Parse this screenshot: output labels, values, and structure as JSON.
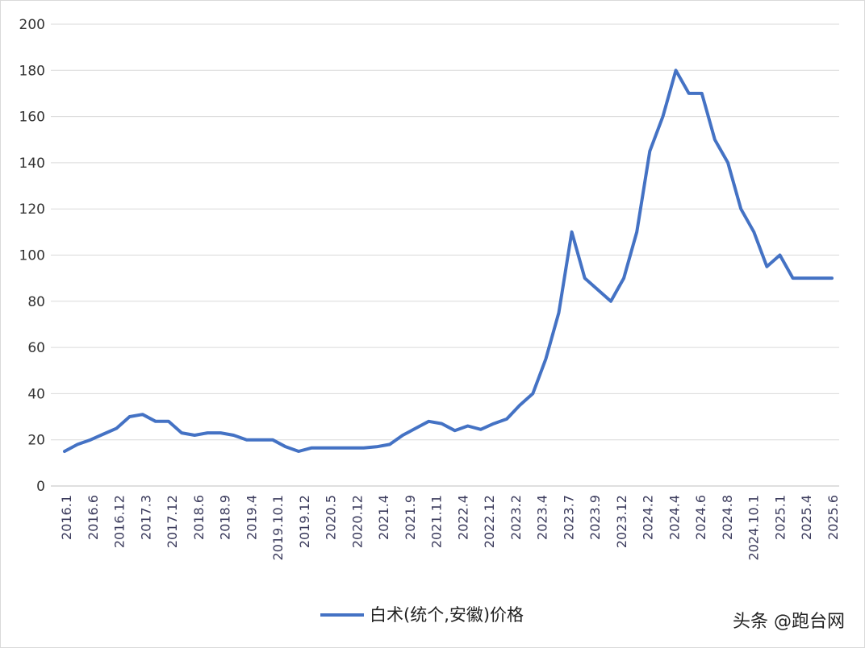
{
  "chart_data": {
    "type": "line",
    "title": "",
    "xlabel": "",
    "ylabel": "",
    "ylim": [
      0,
      200
    ],
    "yticks": [
      0,
      20,
      40,
      60,
      80,
      100,
      120,
      140,
      160,
      180,
      200
    ],
    "grid": "horizontal",
    "legend_position": "bottom-center",
    "x_tick_labels": [
      "2016.1",
      "2016.6",
      "2016.12",
      "2017.3",
      "2017.12",
      "2018.6",
      "2018.9",
      "2019.4",
      "2019.10.1",
      "2019.12",
      "2020.5",
      "2020.12",
      "2021.4",
      "2021.9",
      "2021.11",
      "2022.4",
      "2022.12",
      "2023.2",
      "2023.4",
      "2023.7",
      "2023.9",
      "2023.12",
      "2024.2",
      "2024.4",
      "2024.6",
      "2024.8",
      "2024.10.1",
      "2025.1",
      "2025.4",
      "2025.6"
    ],
    "series": [
      {
        "name": "白术(统个,安徽)价格",
        "color": "#4472c4",
        "values": [
          15,
          18,
          20,
          22.5,
          25,
          30,
          31,
          28,
          28,
          23,
          22,
          23,
          23,
          22,
          20,
          20,
          20,
          17,
          15,
          16.5,
          16.5,
          16.5,
          16.5,
          16.5,
          17,
          18,
          22,
          25,
          28,
          27,
          24,
          26,
          24.5,
          27,
          29,
          35,
          40,
          55,
          75,
          110,
          90,
          85,
          80,
          90,
          110,
          145,
          160,
          180,
          170,
          170,
          150,
          140,
          120,
          110,
          95,
          100,
          90,
          90,
          90,
          90
        ]
      }
    ]
  },
  "watermark": {
    "text": "头条 @跑台网"
  }
}
